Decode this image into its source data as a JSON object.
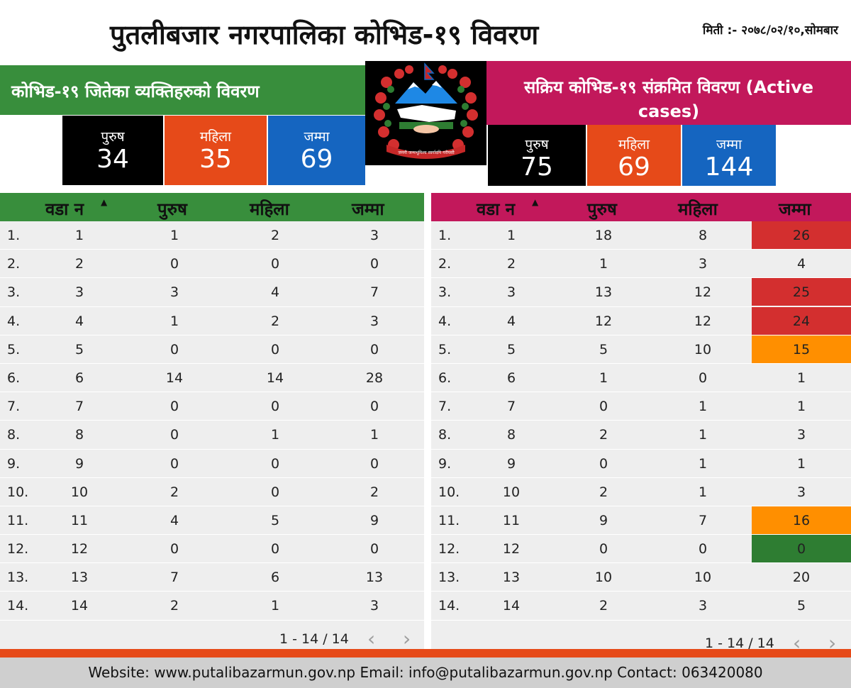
{
  "header": {
    "title": "पुतलीबजार नगरपालिका कोभिड-१९ विवरण",
    "date": "मिती :- २०७८/०२/१०,सोमबार"
  },
  "recovered": {
    "heading": "कोभिड-१९ जितेका व्यक्तिहरुको  विवरण",
    "male_label": "पुरुष",
    "male_value": "34",
    "female_label": "महिला",
    "female_value": "35",
    "total_label": "जम्मा",
    "total_value": "69"
  },
  "active": {
    "heading": "सक्रिय  कोभिड-१९ संक्रमित  विवरण (Active cases)",
    "male_label": "पुरुष",
    "male_value": "75",
    "female_label": "महिला",
    "female_value": "69",
    "total_label": "जम्मा",
    "total_value": "144"
  },
  "emblem_text": "जननी जन्मभूमिश्च स्वर्गादपि गरीयसी",
  "colors": {
    "green": "#388e3c",
    "pink": "#c2185b",
    "orange": "#e64a19",
    "blue": "#1565c0",
    "hl_red": "#d32f2f",
    "hl_orange": "#ff8f00",
    "hl_green": "#2e7d32"
  },
  "table_left": {
    "columns": [
      "वडा न",
      "पुरुष",
      "महिला",
      "जम्मा"
    ],
    "sort_icon": "sort-ascending-icon",
    "rows": [
      [
        "1.",
        "1",
        "1",
        "2",
        "3"
      ],
      [
        "2.",
        "2",
        "0",
        "0",
        "0"
      ],
      [
        "3.",
        "3",
        "3",
        "4",
        "7"
      ],
      [
        "4.",
        "4",
        "1",
        "2",
        "3"
      ],
      [
        "5.",
        "5",
        "0",
        "0",
        "0"
      ],
      [
        "6.",
        "6",
        "14",
        "14",
        "28"
      ],
      [
        "7.",
        "7",
        "0",
        "0",
        "0"
      ],
      [
        "8.",
        "8",
        "0",
        "1",
        "1"
      ],
      [
        "9.",
        "9",
        "0",
        "0",
        "0"
      ],
      [
        "10.",
        "10",
        "2",
        "0",
        "2"
      ],
      [
        "11.",
        "11",
        "4",
        "5",
        "9"
      ],
      [
        "12.",
        "12",
        "0",
        "0",
        "0"
      ],
      [
        "13.",
        "13",
        "7",
        "6",
        "13"
      ],
      [
        "14.",
        "14",
        "2",
        "1",
        "3"
      ]
    ],
    "pagination": "1 - 14 / 14"
  },
  "table_right": {
    "columns": [
      "वडा न",
      "पुरुष",
      "महिला",
      "जम्मा"
    ],
    "sort_icon": "sort-ascending-icon",
    "rows": [
      [
        "1.",
        "1",
        "18",
        "8",
        "26"
      ],
      [
        "2.",
        "2",
        "1",
        "3",
        "4"
      ],
      [
        "3.",
        "3",
        "13",
        "12",
        "25"
      ],
      [
        "4.",
        "4",
        "12",
        "12",
        "24"
      ],
      [
        "5.",
        "5",
        "5",
        "10",
        "15"
      ],
      [
        "6.",
        "6",
        "1",
        "0",
        "1"
      ],
      [
        "7.",
        "7",
        "0",
        "1",
        "1"
      ],
      [
        "8.",
        "8",
        "2",
        "1",
        "3"
      ],
      [
        "9.",
        "9",
        "0",
        "1",
        "1"
      ],
      [
        "10.",
        "10",
        "2",
        "1",
        "3"
      ],
      [
        "11.",
        "11",
        "9",
        "7",
        "16"
      ],
      [
        "12.",
        "12",
        "0",
        "0",
        "0"
      ],
      [
        "13.",
        "13",
        "10",
        "10",
        "20"
      ],
      [
        "14.",
        "14",
        "2",
        "3",
        "5"
      ]
    ],
    "highlights": [
      "red",
      "",
      "red",
      "red",
      "orange",
      "",
      "",
      "",
      "",
      "",
      "orange",
      "green",
      "",
      ""
    ],
    "pagination": "1 - 14 / 14"
  },
  "footer": {
    "text": "Website: www.putalibazarmun.gov.np Email: info@putalibazarmun.gov.np  Contact: 063420080"
  }
}
